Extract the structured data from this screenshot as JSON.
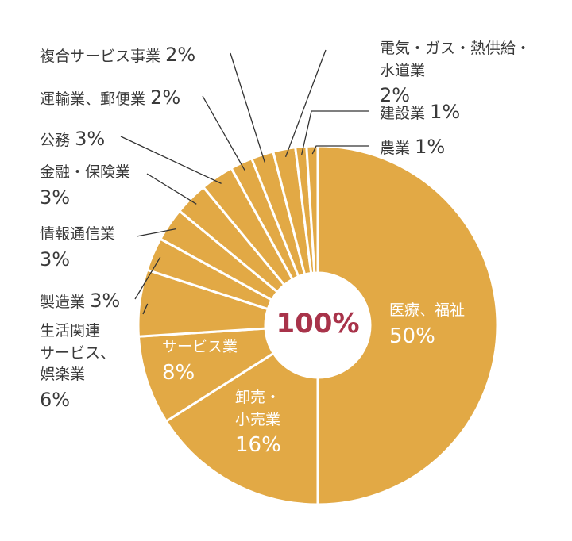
{
  "chart_data": {
    "type": "donut",
    "center_label": "100%",
    "categories": [
      "医療、福祉",
      "卸売・\n小売業",
      "サービス業",
      "生活関連\nサービス、\n娯楽業",
      "製造業",
      "情報通信業",
      "金融・保険業",
      "公務",
      "運輸業、郵便業",
      "複合サービス事業",
      "電気・ガス・熱供給・\n水道業",
      "建設業",
      "農業"
    ],
    "values": [
      50,
      16,
      8,
      6,
      3,
      3,
      3,
      3,
      2,
      2,
      2,
      1,
      1
    ],
    "value_labels": [
      "50%",
      "16%",
      "8%",
      "6%",
      "3%",
      "3%",
      "3%",
      "3%",
      "2%",
      "2%",
      "2%",
      "1%",
      "1%"
    ],
    "color": "#e2a945"
  }
}
